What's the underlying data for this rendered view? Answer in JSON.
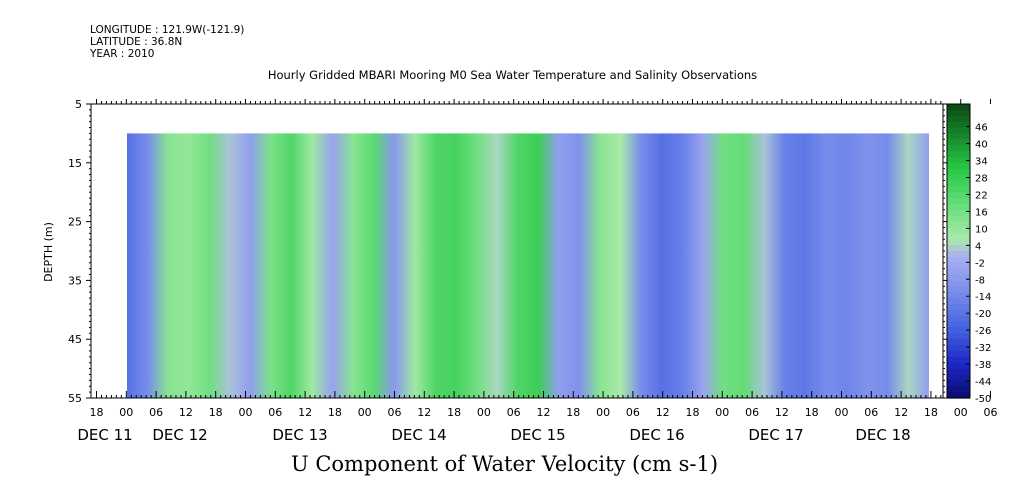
{
  "meta": {
    "longitude": "LONGITUDE : 121.9W(-121.9)",
    "latitude": "LATITUDE : 36.8N",
    "year": "YEAR : 2010"
  },
  "title": "Hourly Gridded MBARI Mooring M0 Sea Water Temperature and Salinity Observations",
  "bottom_title": "U Component of Water Velocity (cm s-1)",
  "chart_data": {
    "type": "heatmap",
    "ylabel": "DEPTH (m)",
    "y_ticks": [
      "5",
      "15",
      "25",
      "35",
      "45",
      "55"
    ],
    "ylim": [
      55,
      5
    ],
    "data_depth_range": [
      10,
      55
    ],
    "x_hour_ticks": [
      "18",
      "00",
      "06",
      "12",
      "18",
      "00",
      "06",
      "12",
      "18",
      "00",
      "06",
      "12",
      "18",
      "00",
      "06",
      "12",
      "18",
      "00",
      "06",
      "12",
      "18",
      "00",
      "06",
      "12",
      "18",
      "00",
      "06",
      "12",
      "18",
      "00",
      "06",
      "12",
      "18",
      "00",
      "06",
      "12",
      "18"
    ],
    "x_date_labels": [
      "DEC 11",
      "DEC 12",
      "DEC 13",
      "DEC 14",
      "DEC 15",
      "DEC 16",
      "DEC 17",
      "DEC 18"
    ],
    "colorbar": {
      "labels": [
        "46",
        "40",
        "34",
        "28",
        "22",
        "16",
        "10",
        "4",
        "-2",
        "-8",
        "-14",
        "-20",
        "-26",
        "-32",
        "-38",
        "-44",
        "-50"
      ],
      "min": -50,
      "max": 50
    },
    "time_bands_approx": {
      "description": "approximate U velocity (cm/s) per ~6-hour band from Dec 12 00 to Dec 18 18",
      "values": [
        -22,
        -14,
        10,
        8,
        14,
        0,
        -8,
        12,
        20,
        6,
        -6,
        10,
        18,
        -10,
        6,
        20,
        22,
        14,
        2,
        20,
        24,
        -8,
        -12,
        10,
        4,
        -14,
        -22,
        -18,
        -6,
        14,
        16,
        0,
        -18,
        -20,
        -14,
        -16,
        -12,
        -14,
        2,
        -8
      ]
    }
  }
}
